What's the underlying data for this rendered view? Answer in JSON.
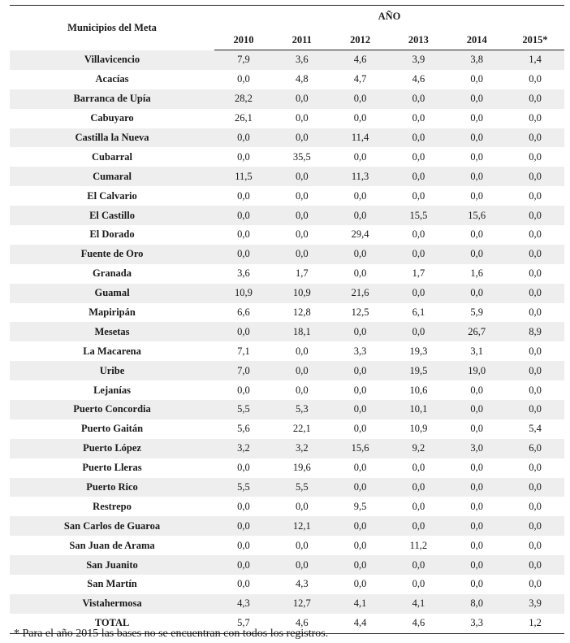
{
  "header": {
    "municipio_label": "Municipios del Meta",
    "ano_label": "AÑO",
    "years": [
      "2010",
      "2011",
      "2012",
      "2013",
      "2014",
      "2015*"
    ]
  },
  "rows": [
    {
      "name": "Villavicencio",
      "values": [
        "7,9",
        "3,6",
        "4,6",
        "3,9",
        "3,8",
        "1,4"
      ]
    },
    {
      "name": "Acacías",
      "values": [
        "0,0",
        "4,8",
        "4,7",
        "4,6",
        "0,0",
        "0,0"
      ]
    },
    {
      "name": "Barranca de Upía",
      "values": [
        "28,2",
        "0,0",
        "0,0",
        "0,0",
        "0,0",
        "0,0"
      ]
    },
    {
      "name": "Cabuyaro",
      "values": [
        "26,1",
        "0,0",
        "0,0",
        "0,0",
        "0,0",
        "0,0"
      ]
    },
    {
      "name": "Castilla la Nueva",
      "values": [
        "0,0",
        "0,0",
        "11,4",
        "0,0",
        "0,0",
        "0,0"
      ]
    },
    {
      "name": "Cubarral",
      "values": [
        "0,0",
        "35,5",
        "0,0",
        "0,0",
        "0,0",
        "0,0"
      ]
    },
    {
      "name": "Cumaral",
      "values": [
        "11,5",
        "0,0",
        "11,3",
        "0,0",
        "0,0",
        "0,0"
      ]
    },
    {
      "name": "El Calvario",
      "values": [
        "0,0",
        "0,0",
        "0,0",
        "0,0",
        "0,0",
        "0,0"
      ]
    },
    {
      "name": "El Castillo",
      "values": [
        "0,0",
        "0,0",
        "0,0",
        "15,5",
        "15,6",
        "0,0"
      ]
    },
    {
      "name": "El Dorado",
      "values": [
        "0,0",
        "0,0",
        "29,4",
        "0,0",
        "0,0",
        "0,0"
      ]
    },
    {
      "name": "Fuente de Oro",
      "values": [
        "0,0",
        "0,0",
        "0,0",
        "0,0",
        "0,0",
        "0,0"
      ]
    },
    {
      "name": "Granada",
      "values": [
        "3,6",
        "1,7",
        "0,0",
        "1,7",
        "1,6",
        "0,0"
      ]
    },
    {
      "name": "Guamal",
      "values": [
        "10,9",
        "10,9",
        "21,6",
        "0,0",
        "0,0",
        "0,0"
      ]
    },
    {
      "name": "Mapiripán",
      "values": [
        "6,6",
        "12,8",
        "12,5",
        "6,1",
        "5,9",
        "0,0"
      ]
    },
    {
      "name": "Mesetas",
      "values": [
        "0,0",
        "18,1",
        "0,0",
        "0,0",
        "26,7",
        "8,9"
      ]
    },
    {
      "name": "La Macarena",
      "values": [
        "7,1",
        "0,0",
        "3,3",
        "19,3",
        "3,1",
        "0,0"
      ]
    },
    {
      "name": "Uribe",
      "values": [
        "7,0",
        "0,0",
        "0,0",
        "19,5",
        "19,0",
        "0,0"
      ]
    },
    {
      "name": "Lejanías",
      "values": [
        "0,0",
        "0,0",
        "0,0",
        "10,6",
        "0,0",
        "0,0"
      ]
    },
    {
      "name": "Puerto Concordia",
      "values": [
        "5,5",
        "5,3",
        "0,0",
        "10,1",
        "0,0",
        "0,0"
      ]
    },
    {
      "name": "Puerto Gaitán",
      "values": [
        "5,6",
        "22,1",
        "0,0",
        "10,9",
        "0,0",
        "5,4"
      ]
    },
    {
      "name": "Puerto López",
      "values": [
        "3,2",
        "3,2",
        "15,6",
        "9,2",
        "3,0",
        "6,0"
      ]
    },
    {
      "name": "Puerto Lleras",
      "values": [
        "0,0",
        "19,6",
        "0,0",
        "0,0",
        "0,0",
        "0,0"
      ]
    },
    {
      "name": "Puerto Rico",
      "values": [
        "5,5",
        "5,5",
        "0,0",
        "0,0",
        "0,0",
        "0,0"
      ]
    },
    {
      "name": "Restrepo",
      "values": [
        "0,0",
        "0,0",
        "9,5",
        "0,0",
        "0,0",
        "0,0"
      ]
    },
    {
      "name": "San Carlos de Guaroa",
      "values": [
        "0,0",
        "12,1",
        "0,0",
        "0,0",
        "0,0",
        "0,0"
      ]
    },
    {
      "name": "San Juan de Arama",
      "values": [
        "0,0",
        "0,0",
        "0,0",
        "11,2",
        "0,0",
        "0,0"
      ]
    },
    {
      "name": "San Juanito",
      "values": [
        "0,0",
        "0,0",
        "0,0",
        "0,0",
        "0,0",
        "0,0"
      ]
    },
    {
      "name": "San Martín",
      "values": [
        "0,0",
        "4,3",
        "0,0",
        "0,0",
        "0,0",
        "0,0"
      ]
    },
    {
      "name": "Vistahermosa",
      "values": [
        "4,3",
        "12,7",
        "4,1",
        "4,1",
        "8,0",
        "3,9"
      ]
    },
    {
      "name": "TOTAL",
      "values": [
        "5,7",
        "4,6",
        "4,4",
        "4,6",
        "3,3",
        "1,2"
      ]
    }
  ],
  "footnote": "* Para el año 2015 las bases no se encuentran con todos los registros.",
  "colors": {
    "shade": "#eeeeee",
    "rule": "#222222"
  }
}
